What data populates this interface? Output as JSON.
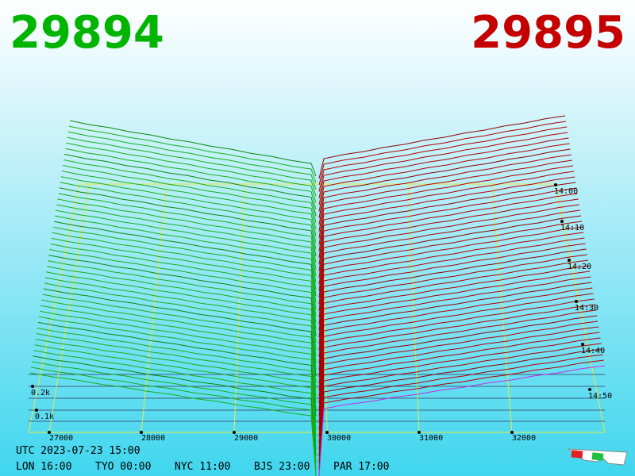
{
  "header": {
    "bid": "29894",
    "ask": "29895"
  },
  "price_axis": [
    "27000",
    "28000",
    "29000",
    "30000",
    "31000",
    "32000"
  ],
  "time_axis": [
    "14:00",
    "14:10",
    "14:20",
    "14:30",
    "14:40",
    "14:50"
  ],
  "volume_axis": [
    "0.2k",
    "0.1k"
  ],
  "footer": {
    "utc": "UTC 2023-07-23 15:00",
    "clocks": [
      "LON 16:00",
      "TYO 00:00",
      "NYC 11:00",
      "BJS 23:00",
      "PAR 17:00"
    ]
  }
}
